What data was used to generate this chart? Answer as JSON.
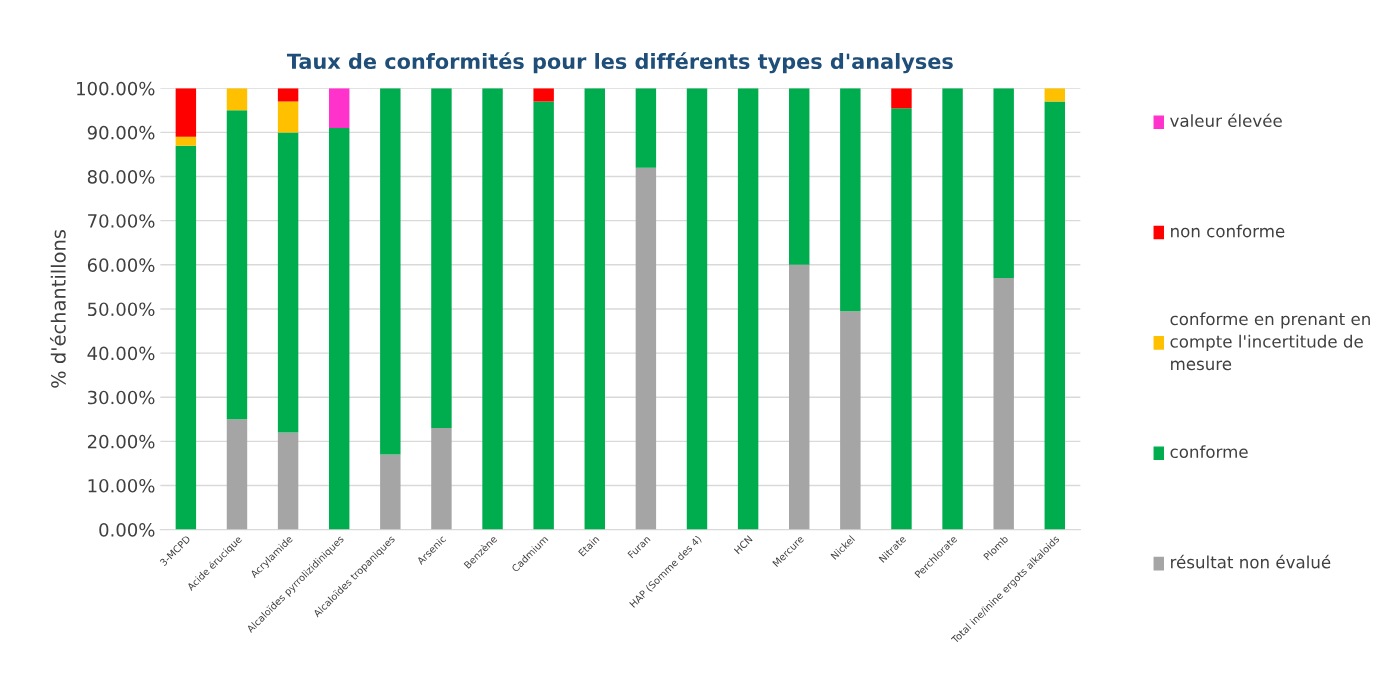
{
  "chart_data": {
    "type": "bar",
    "stacked": true,
    "title": "Taux de conformités pour les différents types d'analyses",
    "ylabel": "% d'échantillons",
    "categories": [
      "3-MCPD",
      "Acide érucique",
      "Acrylamide",
      "Alcaloïdes pyrrolizidiniques",
      "Alcaloïdes tropaniques",
      "Arsenic",
      "Benzène",
      "Cadmium",
      "Etain",
      "Furan",
      "HAP (Somme des 4)",
      "HCN",
      "Mercure",
      "Nickel",
      "Nitrate",
      "Perchlorate",
      "Plomb",
      "Total ine/inine ergots alkaloids"
    ],
    "series": [
      {
        "name": "résultat non évalué",
        "color": "#a5a5a5",
        "values": [
          null,
          25,
          22,
          null,
          17,
          23,
          null,
          null,
          null,
          82,
          null,
          null,
          60,
          49.5,
          null,
          null,
          57,
          null
        ]
      },
      {
        "name": "conforme",
        "color": "#00ad4e",
        "values": [
          87,
          70,
          68,
          91,
          83,
          77,
          100,
          97,
          100,
          18,
          100,
          100,
          40,
          50.5,
          95.5,
          100,
          43,
          97
        ]
      },
      {
        "name": "conforme en prenant en compte l'incertitude de mesure",
        "color": "#ffc000",
        "values": [
          2,
          5,
          7,
          null,
          null,
          null,
          null,
          null,
          null,
          null,
          null,
          null,
          null,
          null,
          null,
          null,
          null,
          3
        ]
      },
      {
        "name": "non conforme",
        "color": "#ff0000",
        "values": [
          11,
          null,
          3,
          null,
          null,
          null,
          null,
          3,
          null,
          null,
          null,
          null,
          null,
          null,
          4.5,
          null,
          null,
          null
        ]
      },
      {
        "name": "valeur élevée",
        "color": "#ff33cc",
        "values": [
          null,
          null,
          null,
          9,
          null,
          null,
          null,
          null,
          null,
          null,
          null,
          null,
          null,
          null,
          null,
          null,
          null,
          null
        ]
      }
    ],
    "ylim": [
      0,
      100
    ],
    "yticks": [
      {
        "value": 0,
        "label": "0.00%"
      },
      {
        "value": 10,
        "label": "10.00%"
      },
      {
        "value": 20,
        "label": "20.00%"
      },
      {
        "value": 30,
        "label": "30.00%"
      },
      {
        "value": 40,
        "label": "40.00%"
      },
      {
        "value": 50,
        "label": "50.00%"
      },
      {
        "value": 60,
        "label": "60.00%"
      },
      {
        "value": 70,
        "label": "70.00%"
      },
      {
        "value": 80,
        "label": "80.00%"
      },
      {
        "value": 90,
        "label": "90.00%"
      },
      {
        "value": 100,
        "label": "100.00%"
      }
    ],
    "grid": "y",
    "legend": "right"
  }
}
